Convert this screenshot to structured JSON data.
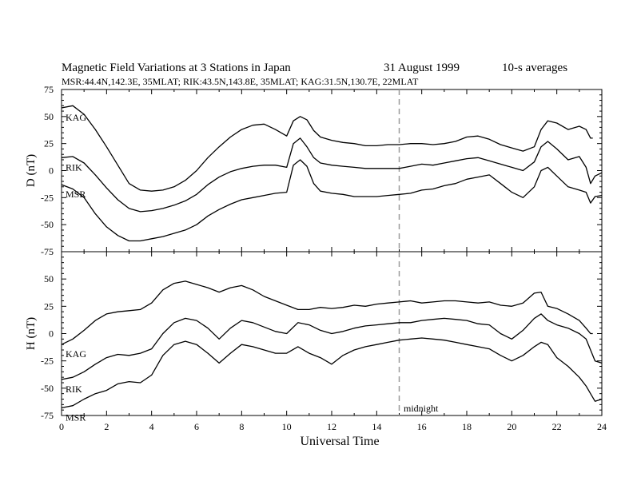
{
  "title": "Magnetic Field Variations at 3 Stations in Japan",
  "date": "31  August  1999",
  "note": "10-s averages",
  "subtitle": "MSR:44.4N,142.3E, 35MLAT;   RIK:43.5N,143.8E, 35MLAT;   KAG:31.5N,130.7E, 22MLAT",
  "midnight_label": "midnight",
  "chart_data": [
    {
      "type": "line",
      "ylabel": "D (nT)",
      "xlabel": "",
      "xlim": [
        0,
        24
      ],
      "ylim": [
        -75,
        75
      ],
      "yticks": [
        "75",
        "50",
        "25",
        "0",
        "-25",
        "-50",
        "-75"
      ],
      "midnight_x": 15,
      "grid": false,
      "series": [
        {
          "name": "KAG",
          "x": [
            0,
            0.5,
            1,
            1.5,
            2,
            2.5,
            3,
            3.5,
            4,
            4.5,
            5,
            5.5,
            6,
            6.5,
            7,
            7.5,
            8,
            8.5,
            9,
            9.5,
            10,
            10.3,
            10.6,
            10.9,
            11.2,
            11.5,
            12,
            12.5,
            13,
            13.5,
            14,
            14.5,
            15,
            15.5,
            16,
            16.5,
            17,
            17.5,
            18,
            18.5,
            19,
            19.5,
            20,
            20.5,
            21,
            21.3,
            21.6,
            22,
            22.5,
            23,
            23.3,
            23.5,
            23.6
          ],
          "y": [
            58,
            60,
            52,
            38,
            22,
            5,
            -12,
            -18,
            -19,
            -18,
            -15,
            -9,
            0,
            12,
            22,
            31,
            38,
            42,
            43,
            38,
            32,
            46,
            50,
            47,
            37,
            31,
            28,
            26,
            25,
            23,
            23,
            24,
            24,
            25,
            25,
            24,
            25,
            27,
            31,
            32,
            29,
            24,
            21,
            18,
            22,
            38,
            46,
            44,
            38,
            41,
            38,
            30,
            30
          ]
        },
        {
          "name": "RIK",
          "x": [
            0,
            0.5,
            1,
            1.5,
            2,
            2.5,
            3,
            3.5,
            4,
            4.5,
            5,
            5.5,
            6,
            6.5,
            7,
            7.5,
            8,
            8.5,
            9,
            9.5,
            10,
            10.3,
            10.6,
            10.9,
            11.2,
            11.5,
            12,
            12.5,
            13,
            13.5,
            14,
            14.5,
            15,
            15.5,
            16,
            16.5,
            17,
            17.5,
            18,
            18.5,
            19,
            19.5,
            20,
            20.5,
            21,
            21.3,
            21.6,
            22,
            22.5,
            23,
            23.3,
            23.5,
            23.7,
            24
          ],
          "y": [
            12,
            13,
            7,
            -4,
            -16,
            -27,
            -35,
            -38,
            -37,
            -35,
            -32,
            -28,
            -22,
            -13,
            -6,
            -1,
            2,
            4,
            5,
            5,
            3,
            25,
            30,
            22,
            12,
            7,
            5,
            4,
            3,
            2,
            2,
            2,
            2,
            4,
            6,
            5,
            7,
            9,
            11,
            12,
            9,
            6,
            3,
            0,
            8,
            22,
            27,
            20,
            10,
            13,
            3,
            -12,
            -5,
            -2
          ]
        },
        {
          "name": "MSR",
          "x": [
            0,
            0.5,
            1,
            1.5,
            2,
            2.5,
            3,
            3.5,
            4,
            4.5,
            5,
            5.5,
            6,
            6.5,
            7,
            7.5,
            8,
            8.5,
            9,
            9.5,
            10,
            10.3,
            10.6,
            10.9,
            11.2,
            11.5,
            12,
            12.5,
            13,
            13.5,
            14,
            14.5,
            15,
            15.5,
            16,
            16.5,
            17,
            17.5,
            18,
            18.5,
            19,
            19.5,
            20,
            20.5,
            21,
            21.3,
            21.6,
            22,
            22.5,
            23,
            23.3,
            23.5,
            23.7,
            24
          ],
          "y": [
            -13,
            -17,
            -25,
            -40,
            -52,
            -60,
            -65,
            -65,
            -63,
            -61,
            -58,
            -55,
            -50,
            -42,
            -36,
            -31,
            -27,
            -25,
            -23,
            -21,
            -20,
            5,
            10,
            4,
            -12,
            -19,
            -21,
            -22,
            -24,
            -24,
            -24,
            -23,
            -22,
            -21,
            -18,
            -17,
            -14,
            -12,
            -8,
            -6,
            -4,
            -12,
            -20,
            -25,
            -15,
            0,
            3,
            -5,
            -15,
            -18,
            -20,
            -30,
            -24,
            -23
          ]
        }
      ]
    },
    {
      "type": "line",
      "ylabel": "H (nT)",
      "xlabel": "Universal Time",
      "xlim": [
        0,
        24
      ],
      "ylim": [
        -75,
        75
      ],
      "yticks": [
        "75",
        "50",
        "25",
        "0",
        "-25",
        "-50",
        "-75"
      ],
      "xticks": [
        "0",
        "2",
        "4",
        "6",
        "8",
        "10",
        "12",
        "14",
        "16",
        "18",
        "20",
        "22",
        "24"
      ],
      "midnight_x": 15,
      "grid": false,
      "series": [
        {
          "name": "KAG",
          "x": [
            0,
            0.5,
            1,
            1.5,
            2,
            2.5,
            3,
            3.5,
            4,
            4.5,
            5,
            5.5,
            6,
            6.5,
            7,
            7.5,
            8,
            8.5,
            9,
            9.5,
            10,
            10.5,
            11,
            11.5,
            12,
            12.5,
            13,
            13.5,
            14,
            14.5,
            15,
            15.5,
            16,
            16.5,
            17,
            17.5,
            18,
            18.5,
            19,
            19.5,
            20,
            20.5,
            21,
            21.3,
            21.6,
            22,
            22.5,
            23,
            23.3,
            23.5,
            23.6
          ],
          "y": [
            -10,
            -5,
            3,
            12,
            18,
            20,
            21,
            22,
            28,
            40,
            46,
            48,
            45,
            42,
            38,
            42,
            44,
            40,
            34,
            30,
            26,
            22,
            22,
            24,
            23,
            24,
            26,
            25,
            27,
            28,
            29,
            30,
            28,
            29,
            30,
            30,
            29,
            28,
            29,
            26,
            25,
            28,
            37,
            38,
            25,
            23,
            18,
            12,
            5,
            0,
            0
          ]
        },
        {
          "name": "RIK",
          "x": [
            0,
            0.5,
            1,
            1.5,
            2,
            2.5,
            3,
            3.5,
            4,
            4.5,
            5,
            5.5,
            6,
            6.5,
            7,
            7.5,
            8,
            8.5,
            9,
            9.5,
            10,
            10.5,
            11,
            11.5,
            12,
            12.5,
            13,
            13.5,
            14,
            14.5,
            15,
            15.5,
            16,
            16.5,
            17,
            17.5,
            18,
            18.5,
            19,
            19.5,
            20,
            20.5,
            21,
            21.3,
            21.6,
            22,
            22.5,
            23,
            23.3,
            23.5,
            23.7,
            24
          ],
          "y": [
            -42,
            -40,
            -35,
            -28,
            -22,
            -19,
            -20,
            -18,
            -14,
            0,
            10,
            14,
            12,
            5,
            -5,
            5,
            12,
            10,
            6,
            2,
            0,
            10,
            8,
            3,
            0,
            2,
            5,
            7,
            8,
            9,
            10,
            10,
            12,
            13,
            14,
            13,
            12,
            9,
            8,
            0,
            -5,
            3,
            14,
            18,
            12,
            8,
            5,
            0,
            -5,
            -15,
            -25,
            -27
          ]
        },
        {
          "name": "MSR",
          "x": [
            0,
            0.5,
            1,
            1.5,
            2,
            2.5,
            3,
            3.5,
            4,
            4.5,
            5,
            5.5,
            6,
            6.5,
            7,
            7.5,
            8,
            8.5,
            9,
            9.5,
            10,
            10.5,
            11,
            11.5,
            12,
            12.5,
            13,
            13.5,
            14,
            14.5,
            15,
            15.5,
            16,
            16.5,
            17,
            17.5,
            18,
            18.5,
            19,
            19.5,
            20,
            20.5,
            21,
            21.3,
            21.6,
            22,
            22.5,
            23,
            23.3,
            23.5,
            23.7,
            24
          ],
          "y": [
            -68,
            -66,
            -60,
            -55,
            -52,
            -46,
            -44,
            -45,
            -38,
            -20,
            -10,
            -7,
            -10,
            -18,
            -27,
            -18,
            -10,
            -12,
            -15,
            -18,
            -18,
            -12,
            -18,
            -22,
            -28,
            -20,
            -15,
            -12,
            -10,
            -8,
            -6,
            -5,
            -4,
            -5,
            -6,
            -8,
            -10,
            -12,
            -14,
            -20,
            -25,
            -20,
            -12,
            -8,
            -10,
            -22,
            -30,
            -40,
            -48,
            -55,
            -62,
            -60
          ]
        }
      ]
    }
  ]
}
